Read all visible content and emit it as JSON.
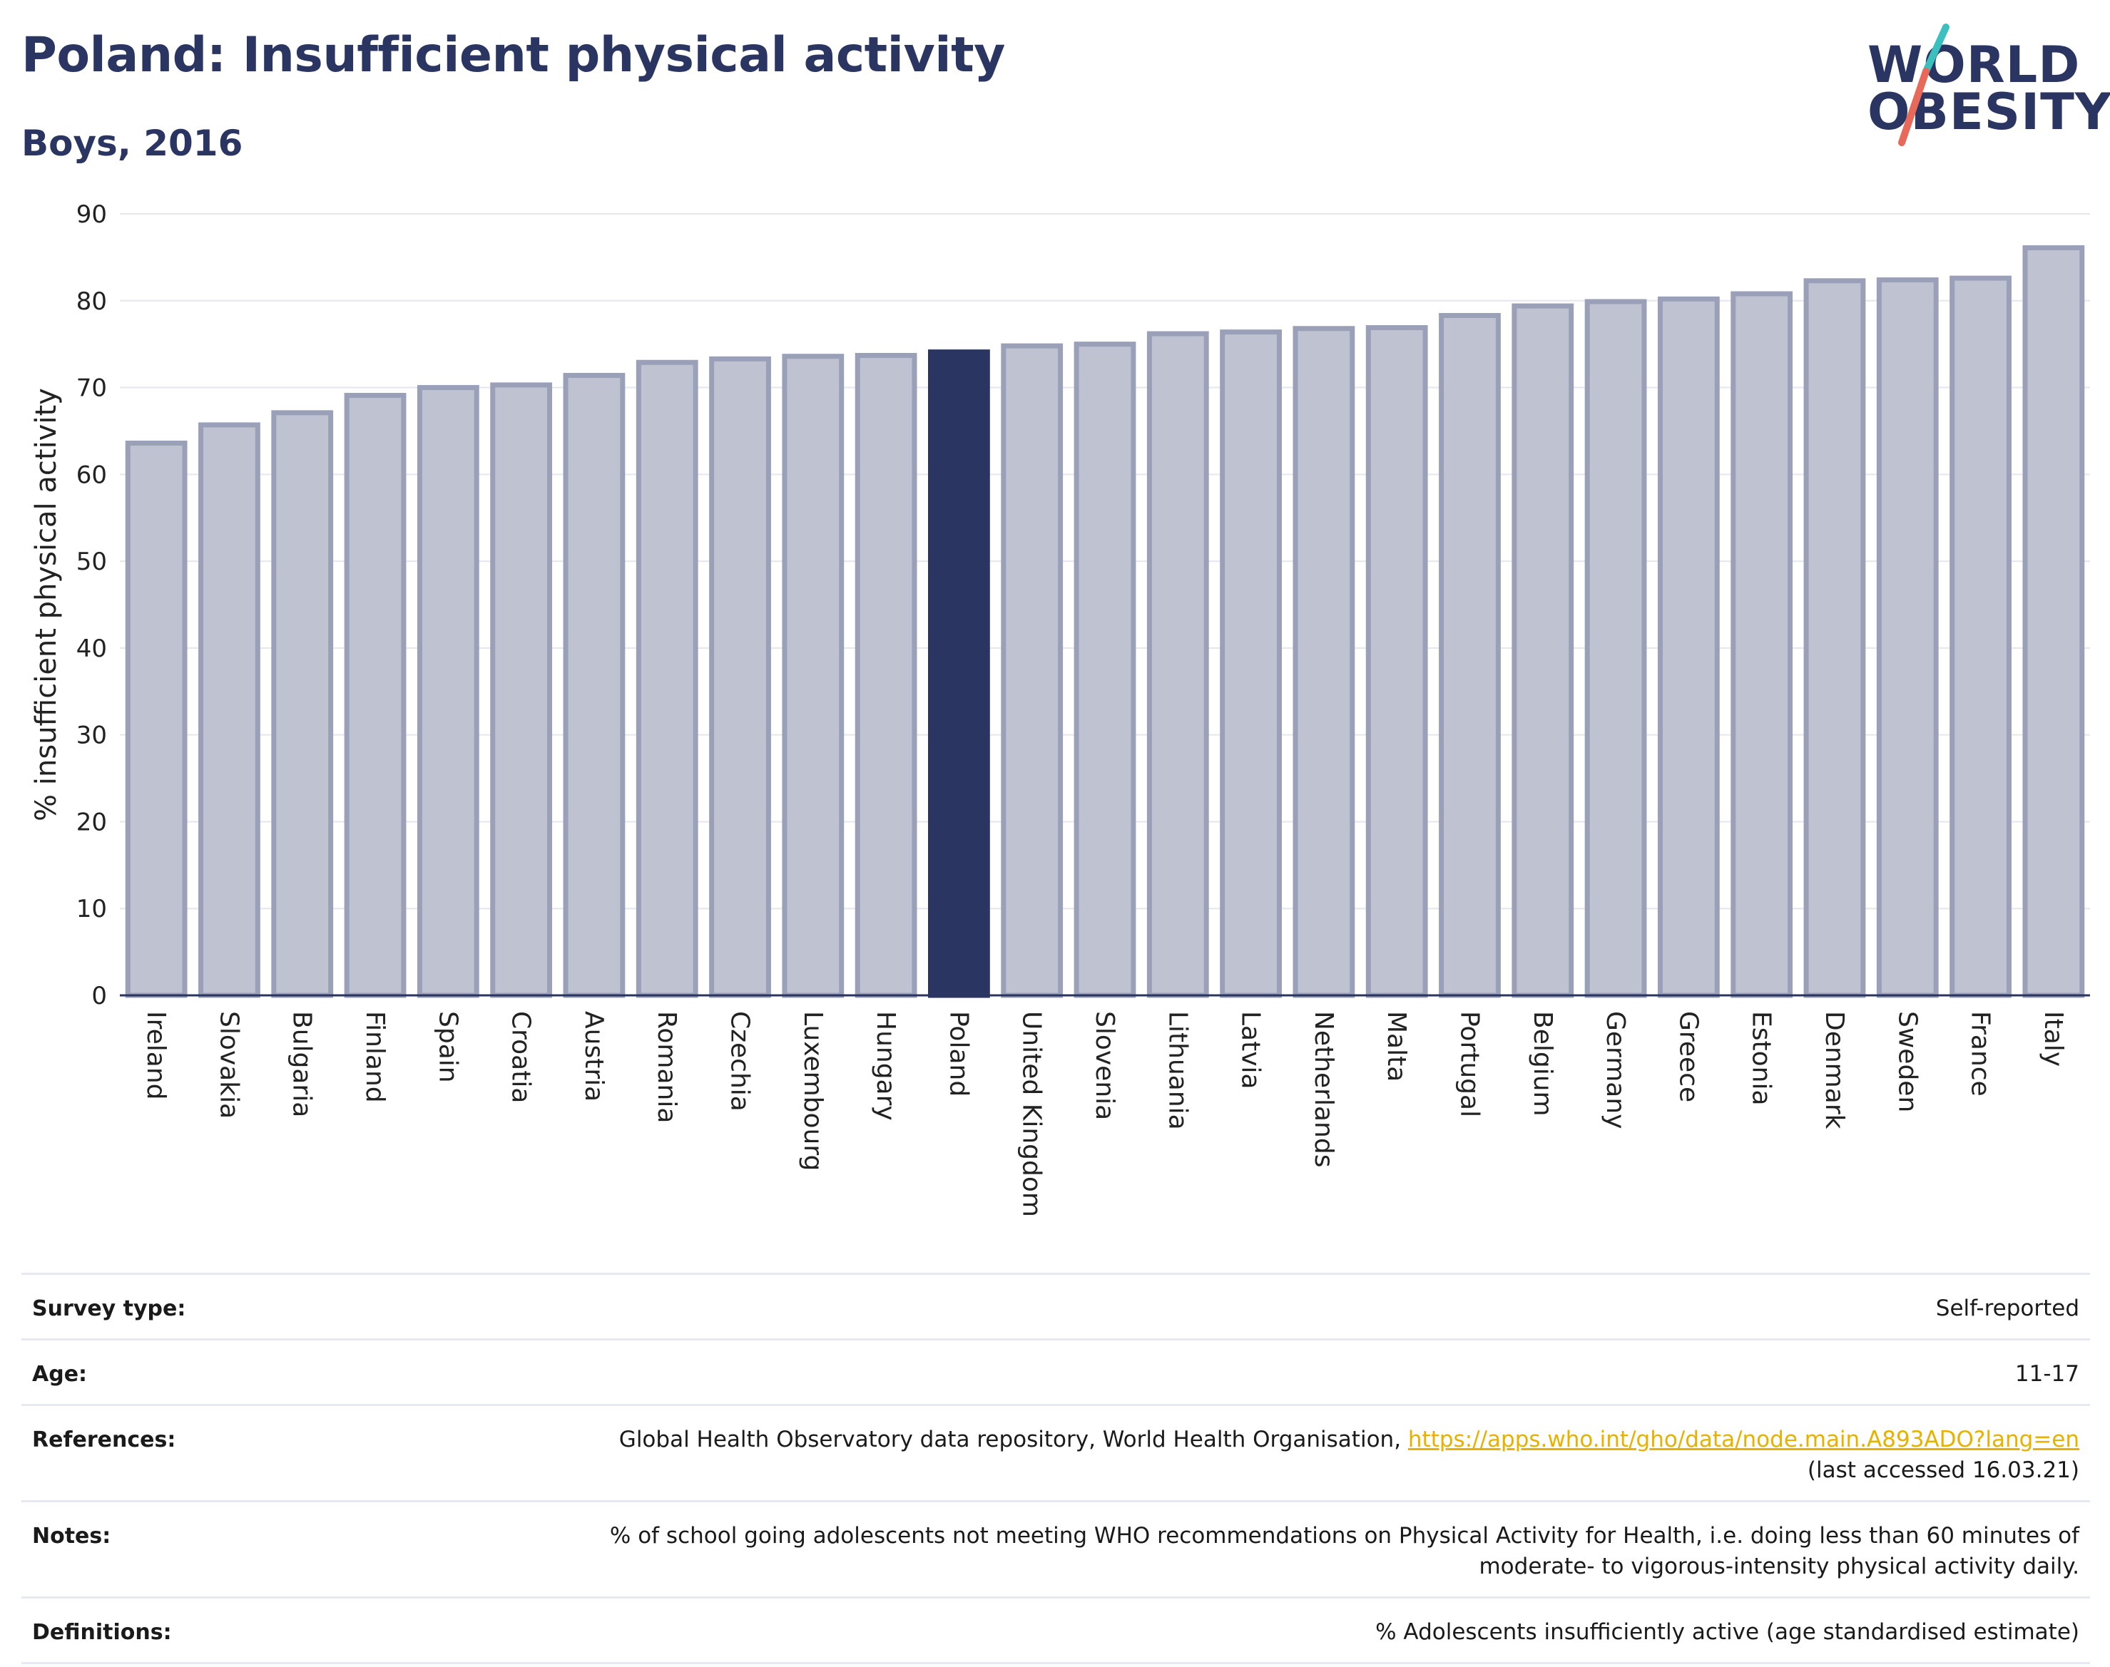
{
  "header": {
    "title": "Poland: Insufficient physical activity",
    "subtitle": "Boys, 2016"
  },
  "logo": {
    "line1": "WORLD",
    "line2": "OBESITY",
    "colors": {
      "text": "#2b3561",
      "slash_top": "#3bbfbf",
      "slash_bottom": "#e8685a"
    }
  },
  "colors": {
    "bar_fill": "#bfc2d0",
    "bar_stroke": "#9aa0b8",
    "highlight": "#2b3561",
    "grid": "#e6e6ee",
    "axis": "#2b3561"
  },
  "chart_data": {
    "type": "bar",
    "title": "",
    "xlabel": "",
    "ylabel": "% insufficient physical activity",
    "ylim": [
      0,
      90
    ],
    "yticks": [
      0,
      10,
      20,
      30,
      40,
      50,
      60,
      70,
      80,
      90
    ],
    "grid": true,
    "highlight": "Poland",
    "categories": [
      "Ireland",
      "Slovakia",
      "Bulgaria",
      "Finland",
      "Spain",
      "Croatia",
      "Austria",
      "Romania",
      "Czechia",
      "Luxembourg",
      "Hungary",
      "Poland",
      "United Kingdom",
      "Slovenia",
      "Lithuania",
      "Latvia",
      "Netherlands",
      "Malta",
      "Portugal",
      "Belgium",
      "Germany",
      "Greece",
      "Estonia",
      "Denmark",
      "Sweden",
      "France",
      "Italy"
    ],
    "values": [
      63.6,
      65.7,
      67.1,
      69.1,
      70.0,
      70.3,
      71.4,
      72.9,
      73.3,
      73.6,
      73.7,
      74.1,
      74.8,
      75.0,
      76.2,
      76.4,
      76.8,
      76.9,
      78.3,
      79.4,
      79.9,
      80.2,
      80.8,
      82.3,
      82.4,
      82.6,
      86.1
    ]
  },
  "info": {
    "survey_type": {
      "label": "Survey type:",
      "value": "Self-reported"
    },
    "age": {
      "label": "Age:",
      "value": "11-17"
    },
    "references": {
      "label": "References:",
      "text": "Global Health Observatory data repository, World Health Organisation, ",
      "link": "https://apps.who.int/gho/data/node.main.A893ADO?lang=en",
      "suffix": "(last accessed 16.03.21)"
    },
    "notes": {
      "label": "Notes:",
      "line1": "% of school going adolescents not meeting WHO recommendations on Physical Activity for Health, i.e. doing less than 60 minutes of",
      "line2": "moderate- to vigorous-intensity physical activity daily."
    },
    "definitions": {
      "label": "Definitions:",
      "value": "% Adolescents insufficiently active (age standardised estimate)"
    }
  }
}
